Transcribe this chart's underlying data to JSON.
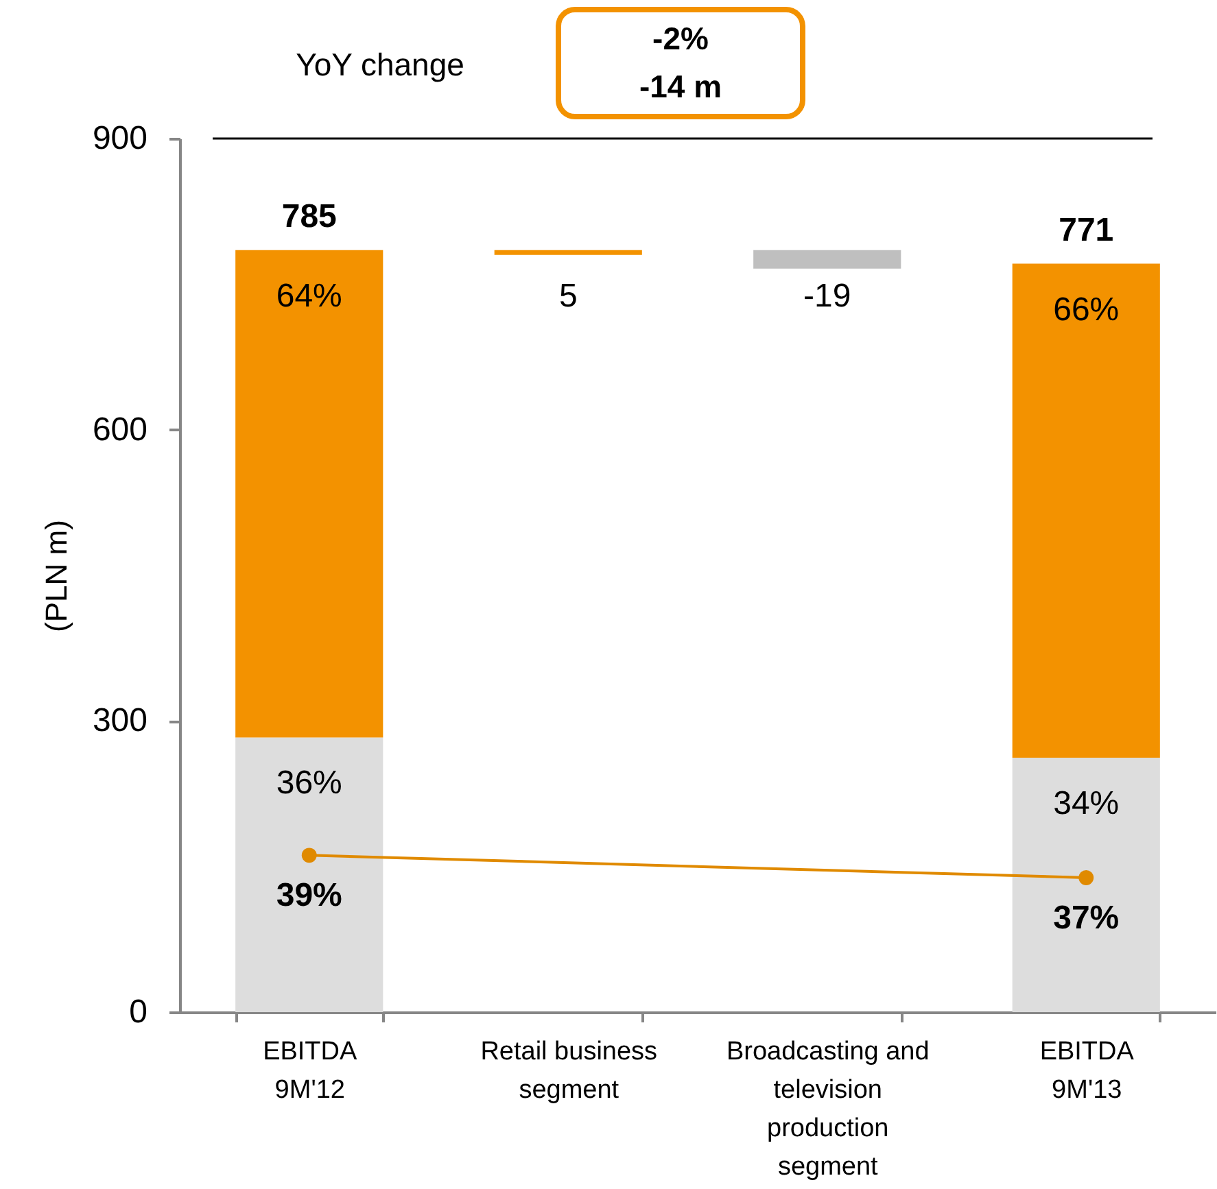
{
  "chart_data": {
    "type": "bar",
    "ylabel": "(PLN m)",
    "categories": [
      "EBITDA\n9M'12",
      "Retail business\nsegment",
      "Broadcasting and\ntelevision\nproduction\nsegment",
      "EBITDA\n9M'13"
    ],
    "ylim": [
      0,
      900
    ],
    "yticks": [
      0,
      300,
      600,
      900
    ],
    "y2lim": [
      25,
      103
    ],
    "tick_labels": "xy",
    "grid": false,
    "series": [
      {
        "colors": [
          "#dddddd",
          null,
          "#bfbfbf",
          "#dddddd"
        ],
        "base": [
          0,
          null,
          785,
          0
        ],
        "values": [
          283,
          null,
          -19,
          262
        ],
        "value_labels": [
          null,
          null,
          "-19",
          null
        ]
      },
      {
        "color": "#f39200",
        "base": [
          283,
          780,
          null,
          262
        ],
        "values": [
          502,
          5,
          null,
          509
        ],
        "value_labels": [
          null,
          "5",
          null,
          null
        ]
      },
      {
        "type": "line",
        "axis": "y2",
        "color": "#e08a00",
        "marker": "circle",
        "x": [
          "EBITDA\n9M'12",
          "EBITDA\n9M'13"
        ],
        "values": [
          39,
          37
        ],
        "value_labels": [
          "39%",
          "37%"
        ]
      }
    ],
    "totals": [
      "785",
      null,
      null,
      "771"
    ],
    "ref_lines": [
      {
        "axis": "y",
        "value": 900,
        "color": "#000000"
      }
    ],
    "annotations": [
      "YoY change",
      "-2%",
      "-14 m",
      {
        "text": "64%",
        "x": "EBITDA\n9M'12",
        "y": 785
      },
      {
        "text": "36%",
        "x": "EBITDA\n9M'12",
        "y": 283
      },
      {
        "text": "66%",
        "x": "EBITDA\n9M'13",
        "y": 771
      },
      {
        "text": "34%",
        "x": "EBITDA\n9M'13",
        "y": 262
      }
    ]
  }
}
